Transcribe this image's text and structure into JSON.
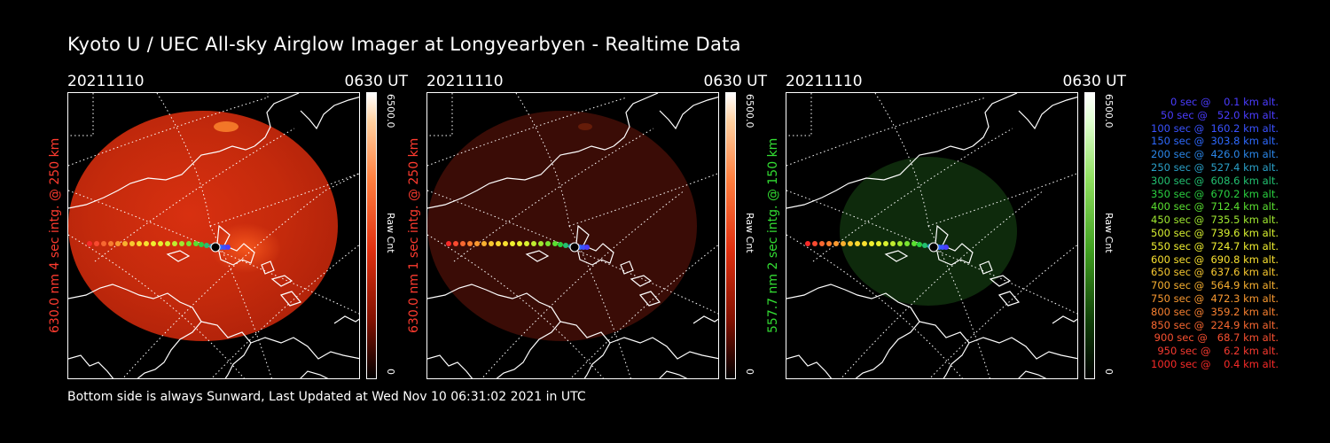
{
  "title": "Kyoto U / UEC All-sky Airglow Imager at Longyearbyen - Realtime Data",
  "footer": "Bottom side is always Sunward, Last Updated at Wed Nov 10 06:31:02 2021 in UTC",
  "panels": [
    {
      "date": "20211110",
      "time": "0630 UT",
      "ylabel": "630.0 nm 4 sec intg. @ 250 km",
      "cbar_max": "6500.0",
      "cbar_unit": "Raw Cnt",
      "cbar_min": "0",
      "label_color": "#ff3b2f",
      "glow": "bright-red"
    },
    {
      "date": "20211110",
      "time": "0630 UT",
      "ylabel": "630.0 nm 1 sec intg. @ 250 km",
      "cbar_max": "6500.0",
      "cbar_unit": "Raw Cnt",
      "cbar_min": "0",
      "label_color": "#ff3b2f",
      "glow": "dim-red"
    },
    {
      "date": "20211110",
      "time": "0630 UT",
      "ylabel": "557.7 nm 2 sec intg. @ 150 km",
      "cbar_max": "6500.0",
      "cbar_unit": "Raw Cnt",
      "cbar_min": "0",
      "label_color": "#33dd33",
      "glow": "dim-green"
    }
  ],
  "legend": [
    {
      "text": "   0 sec @    0.1 km alt.",
      "color": "#4a3cff"
    },
    {
      "text": "  50 sec @   52.0 km alt.",
      "color": "#4a3cff"
    },
    {
      "text": " 100 sec @  160.2 km alt.",
      "color": "#3a52ff"
    },
    {
      "text": " 150 sec @  303.8 km alt.",
      "color": "#2e6aff"
    },
    {
      "text": " 200 sec @  426.0 km alt.",
      "color": "#2a86e8"
    },
    {
      "text": " 250 sec @  527.4 km alt.",
      "color": "#2aa0c8"
    },
    {
      "text": " 300 sec @  608.6 km alt.",
      "color": "#22c070"
    },
    {
      "text": " 350 sec @  670.2 km alt.",
      "color": "#2ad040"
    },
    {
      "text": " 400 sec @  712.4 km alt.",
      "color": "#5ae030"
    },
    {
      "text": " 450 sec @  735.5 km alt.",
      "color": "#a0e830"
    },
    {
      "text": " 500 sec @  739.6 km alt.",
      "color": "#d8f030"
    },
    {
      "text": " 550 sec @  724.7 km alt.",
      "color": "#f0f030"
    },
    {
      "text": " 600 sec @  690.8 km alt.",
      "color": "#f8e030"
    },
    {
      "text": " 650 sec @  637.6 km alt.",
      "color": "#f8c830"
    },
    {
      "text": " 700 sec @  564.9 km alt.",
      "color": "#f8b030"
    },
    {
      "text": " 750 sec @  472.3 km alt.",
      "color": "#f89830"
    },
    {
      "text": " 800 sec @  359.2 km alt.",
      "color": "#f88030"
    },
    {
      "text": " 850 sec @  224.9 km alt.",
      "color": "#f86830"
    },
    {
      "text": " 900 sec @   68.7 km alt.",
      "color": "#f85030"
    },
    {
      "text": " 950 sec @    6.2 km alt.",
      "color": "#f83a30"
    },
    {
      "text": "1000 sec @    0.4 km alt.",
      "color": "#f82a28"
    }
  ]
}
